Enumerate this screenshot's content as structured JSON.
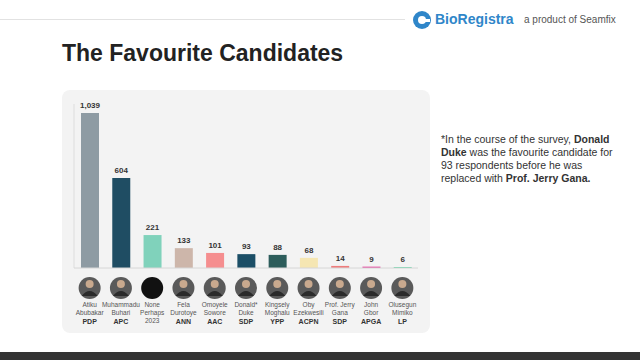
{
  "header": {
    "brand": "BioRegistra",
    "tagline": "a product of Seamfix"
  },
  "note": [
    "*In the course of the survey, ",
    "Donald Duke",
    " was the favourite candidate for 93 respondents before he was replaced with ",
    "Prof. Jerry Gana."
  ],
  "chart_data": {
    "type": "bar",
    "title": "The Favourite Candidates",
    "categories": [
      "Atiku Abubakar",
      "Muhammadu Buhari",
      "None Perhaps 2023",
      "Fela Durotoye",
      "Omoyele Sowore",
      "Donald* Duke",
      "Kingsely Moghalu",
      "Oby Ezekwesili",
      "Prof. Jerry Gana",
      "John Gbor",
      "Olusegun Mimiko"
    ],
    "parties": [
      "PDP",
      "APC",
      null,
      "ANN",
      "AAC",
      "SDP",
      "YPP",
      "ACPN",
      "SDP",
      "APGA",
      "LP"
    ],
    "values": [
      1039,
      604,
      221,
      133,
      101,
      93,
      88,
      68,
      14,
      9,
      6
    ],
    "value_labels": [
      "1,039",
      "604",
      "221",
      "133",
      "101",
      "93",
      "88",
      "68",
      "14",
      "9",
      "6"
    ],
    "colors": [
      "#8e9ba3",
      "#1f4d63",
      "#80d2bb",
      "#cdb6aa",
      "#f58e8f",
      "#1b4e66",
      "#2d5d5b",
      "#f5e6b2",
      "#ee7c7c",
      "#e63f9c",
      "#4ad39b"
    ],
    "ylim": [
      0,
      1100
    ],
    "data_labels": true,
    "tick_labels": "x"
  }
}
